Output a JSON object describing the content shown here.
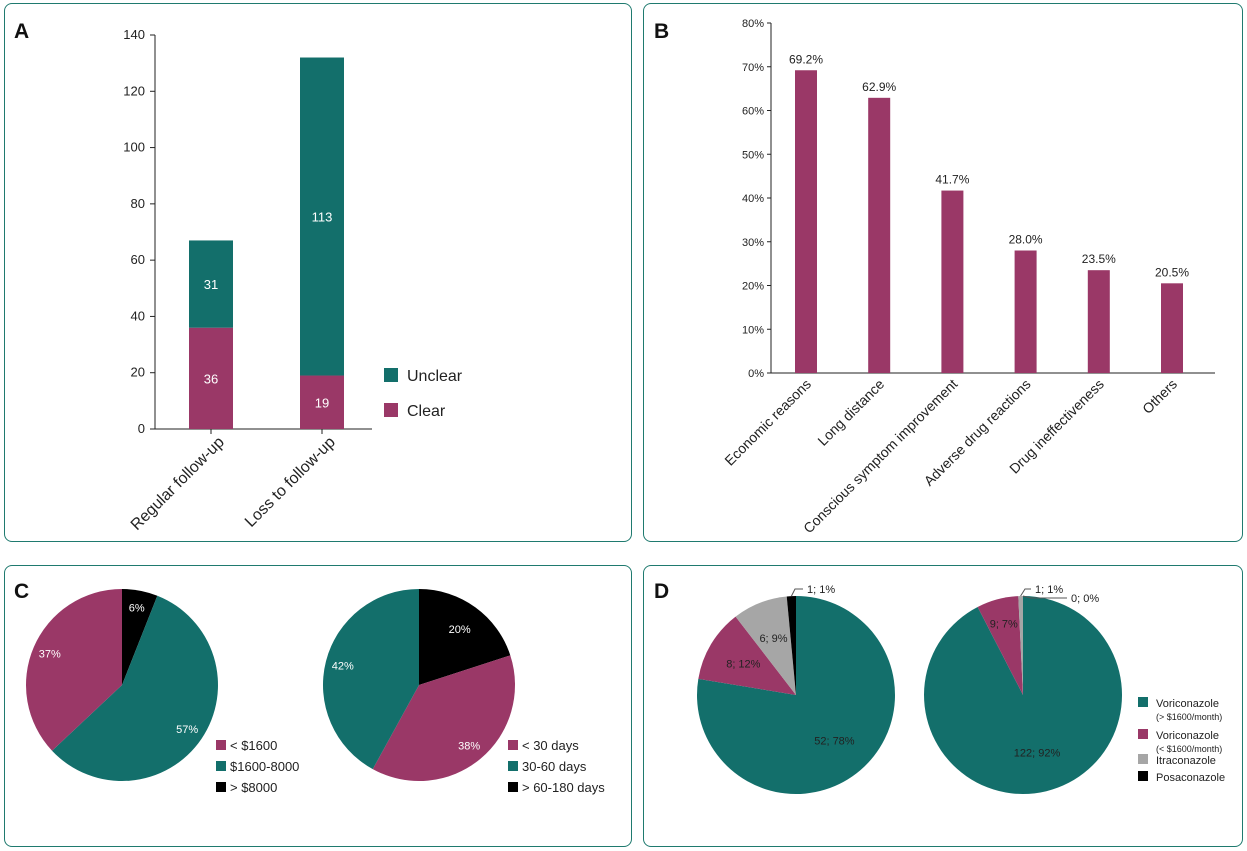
{
  "colors": {
    "teal": "#136f6b",
    "magenta": "#9a3867",
    "black": "#000000",
    "grey": "#a6a6a6",
    "border": "#1f7a6f"
  },
  "panels": {
    "a": "A",
    "b": "B",
    "c": "C",
    "d": "D"
  },
  "chart_data": [
    {
      "id": "A",
      "type": "bar",
      "stacked": true,
      "categories": [
        "Regular follow-up",
        "Loss to follow-up"
      ],
      "series": [
        {
          "name": "Clear",
          "values": [
            36,
            19
          ],
          "color": "#9a3867"
        },
        {
          "name": "Unclear",
          "values": [
            31,
            113
          ],
          "color": "#136f6b"
        }
      ],
      "legend": [
        "Unclear",
        "Clear"
      ],
      "yticks": [
        "0",
        "20",
        "40",
        "60",
        "80",
        "100",
        "120",
        "140"
      ],
      "ylim": [
        0,
        140
      ],
      "legend_position": "right"
    },
    {
      "id": "B",
      "type": "bar",
      "categories": [
        "Economic reasons",
        "Long distance",
        "Conscious symptom improvement",
        "Adverse drug reactions",
        "Drug ineffectiveness",
        "Others"
      ],
      "values": [
        69.2,
        62.9,
        41.7,
        28.0,
        23.5,
        20.5
      ],
      "value_labels": [
        "69.2%",
        "62.9%",
        "41.7%",
        "28.0%",
        "23.5%",
        "20.5%"
      ],
      "yticks": [
        "0%",
        "10%",
        "20%",
        "30%",
        "40%",
        "50%",
        "60%",
        "70%",
        "80%"
      ],
      "ylim": [
        0,
        80
      ],
      "color": "#9a3867"
    },
    {
      "id": "C1",
      "type": "pie",
      "slices": [
        {
          "label": "< $1600",
          "value": 37,
          "text": "37%",
          "color": "#9a3867"
        },
        {
          "label": "$1600-8000",
          "value": 57,
          "text": "57%",
          "color": "#136f6b"
        },
        {
          "label": "> $8000",
          "value": 6,
          "text": "6%",
          "color": "#000000"
        }
      ]
    },
    {
      "id": "C2",
      "type": "pie",
      "slices": [
        {
          "label": "< 30 days",
          "value": 38,
          "text": "38%",
          "color": "#9a3867"
        },
        {
          "label": "30-60 days",
          "value": 42,
          "text": "42%",
          "color": "#136f6b"
        },
        {
          "label": "> 60-180 days",
          "value": 20,
          "text": "20%",
          "color": "#000000"
        }
      ]
    },
    {
      "id": "D1",
      "type": "pie",
      "slices": [
        {
          "label": "Voriconazole (> $1600/month)",
          "value": 52,
          "text": "52; 78%",
          "color": "#136f6b"
        },
        {
          "label": "Voriconazole (< $1600/month)",
          "value": 8,
          "text": "8; 12%",
          "color": "#9a3867"
        },
        {
          "label": "Itraconazole",
          "value": 6,
          "text": "6; 9%",
          "color": "#a6a6a6"
        },
        {
          "label": "Posaconazole",
          "value": 1,
          "text": "1; 1%",
          "color": "#000000"
        }
      ]
    },
    {
      "id": "D2",
      "type": "pie",
      "slices": [
        {
          "label": "Voriconazole (> $1600/month)",
          "value": 122,
          "text": "122; 92%",
          "color": "#136f6b"
        },
        {
          "label": "Voriconazole (< $1600/month)",
          "value": 9,
          "text": "9; 7%",
          "color": "#9a3867"
        },
        {
          "label": "Itraconazole",
          "value": 1,
          "text": "1; 1%",
          "color": "#a6a6a6"
        },
        {
          "label": "Posaconazole",
          "value": 0,
          "text": "0; 0%",
          "color": "#000000"
        }
      ]
    }
  ],
  "legend_d": [
    {
      "line1": "Voriconazole",
      "line2": "(> $1600/month)",
      "color": "#136f6b"
    },
    {
      "line1": "Voriconazole",
      "line2": "(< $1600/month)",
      "color": "#9a3867"
    },
    {
      "line1": "Itraconazole",
      "line2": "",
      "color": "#a6a6a6"
    },
    {
      "line1": "Posaconazole",
      "line2": "",
      "color": "#000000"
    }
  ]
}
